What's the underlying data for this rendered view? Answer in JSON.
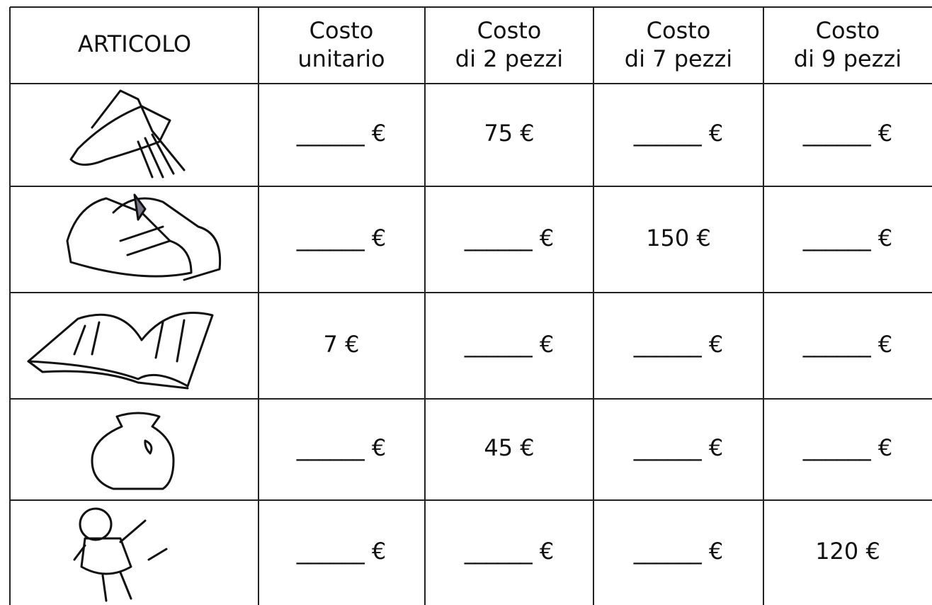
{
  "table": {
    "header": [
      [
        "ARTICOLO"
      ],
      [
        "Costo",
        "unitario"
      ],
      [
        "Costo",
        "di 2 pezzi"
      ],
      [
        "Costo",
        "di 7 pezzi"
      ],
      [
        "Costo",
        "di 9 pezzi"
      ]
    ],
    "rows": [
      [
        "______ €",
        "75 €",
        "______ €",
        "______ €"
      ],
      [
        "______ €",
        "______ €",
        "150 €",
        "______ €"
      ],
      [
        "7 €",
        "______ €",
        "______ €",
        "______ €"
      ],
      [
        "______ €",
        "45 €",
        "______ €",
        "______ €"
      ],
      [
        "______ €",
        "______ €",
        "______ €",
        "120 €"
      ]
    ]
  }
}
